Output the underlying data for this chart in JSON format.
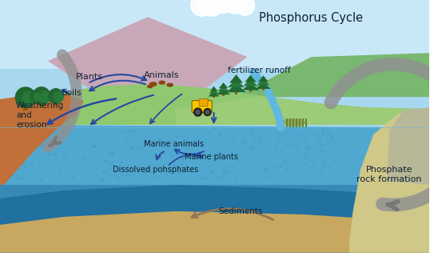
{
  "title": "Phosphorus Cycle",
  "labels": {
    "plants": "Plants",
    "animals": "Animals",
    "soils": "Soils",
    "fertilizer": "fertilizer runoff",
    "weathering": "Weathering\nand\nerosion",
    "marine_animals": "Marine animals",
    "marine_plants": "Marine plants",
    "dissolved": "Dissolved pohsphates",
    "sediments": "Sediments",
    "phosphate_rock": "Phosphate\nrock formation"
  },
  "colors": {
    "sky_top": "#A8D8F0",
    "sky_bot": "#C8E8F8",
    "mountain_pink": "#C8A8B8",
    "mountain_green": "#78B870",
    "land_green": "#90C870",
    "land_green2": "#A8D080",
    "soil_brown": "#C07038",
    "water_surface": "#50A8D0",
    "water_mid": "#3888B8",
    "water_deep": "#2070A0",
    "water_bottom": "#287898",
    "sediment_tan": "#C8A860",
    "sediment_dark": "#B89848",
    "right_cliff": "#D0C888",
    "right_rock": "#B8B898",
    "arrow_blue": "#2848A0",
    "arrow_gray": "#909090",
    "tree_green": "#206830",
    "tree_green2": "#287838",
    "tree_trunk": "#8B6010",
    "text_dark": "#102030",
    "cloud_white": "#FFFFFF",
    "tractor_yellow": "#F8C800",
    "water_dot": "#4898C0"
  },
  "figsize": [
    5.38,
    3.16
  ],
  "dpi": 100
}
